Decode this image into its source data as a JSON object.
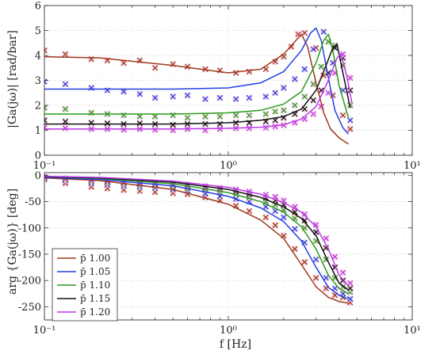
{
  "chart_data": [
    {
      "type": "line",
      "panel": "magnitude",
      "xscale": "log",
      "xlim": [
        0.1,
        10
      ],
      "ylim": [
        0,
        6
      ],
      "yticks": [
        0,
        1,
        2,
        3,
        4,
        5,
        6
      ],
      "xticklabels": [
        "10⁻¹",
        "10⁰",
        "10¹"
      ],
      "xlabel": "",
      "ylabel": "|Ga(jω)| [rad/bar]",
      "grid": true,
      "model": [
        {
          "p": "1.00",
          "x": [
            0.1,
            0.2,
            0.5,
            1.0,
            1.5,
            2.0,
            2.3,
            2.5,
            2.7,
            3.0,
            3.3,
            3.6,
            4.0,
            4.5
          ],
          "y": [
            3.95,
            3.9,
            3.6,
            3.3,
            3.45,
            4.05,
            4.55,
            4.85,
            4.35,
            2.9,
            1.7,
            1.05,
            0.7,
            0.45
          ]
        },
        {
          "p": "1.05",
          "x": [
            0.1,
            0.2,
            0.5,
            1.0,
            1.5,
            2.0,
            2.5,
            2.8,
            3.0,
            3.2,
            3.5,
            3.8,
            4.2,
            4.5
          ],
          "y": [
            2.65,
            2.65,
            2.65,
            2.7,
            2.9,
            3.35,
            4.2,
            4.9,
            5.1,
            4.6,
            3.1,
            1.8,
            1.1,
            0.85
          ]
        },
        {
          "p": "1.10",
          "x": [
            0.1,
            0.2,
            0.5,
            1.0,
            1.5,
            2.0,
            2.5,
            3.0,
            3.3,
            3.5,
            3.7,
            4.0,
            4.5
          ],
          "y": [
            1.65,
            1.65,
            1.65,
            1.7,
            1.8,
            2.05,
            2.55,
            3.7,
            4.6,
            4.85,
            4.2,
            2.8,
            1.5
          ]
        },
        {
          "p": "1.15",
          "x": [
            0.1,
            0.2,
            0.5,
            1.0,
            1.5,
            2.0,
            2.5,
            3.0,
            3.4,
            3.7,
            3.9,
            4.2,
            4.6
          ],
          "y": [
            1.25,
            1.25,
            1.25,
            1.3,
            1.4,
            1.55,
            1.85,
            2.6,
            3.6,
            4.3,
            4.45,
            3.3,
            1.9
          ]
        },
        {
          "p": "1.20",
          "x": [
            0.1,
            0.2,
            0.5,
            1.0,
            1.5,
            2.0,
            2.5,
            3.0,
            3.5,
            3.9,
            4.1,
            4.4,
            4.7
          ],
          "y": [
            1.05,
            1.05,
            1.05,
            1.08,
            1.12,
            1.22,
            1.45,
            1.95,
            3.0,
            3.9,
            4.05,
            3.2,
            2.1
          ]
        }
      ],
      "measured": [
        {
          "p": "1.00",
          "x": [
            0.1,
            0.13,
            0.18,
            0.22,
            0.27,
            0.33,
            0.4,
            0.5,
            0.6,
            0.75,
            0.9,
            1.1,
            1.3,
            1.6,
            1.8,
            2.0,
            2.2,
            2.4,
            2.6,
            3.0,
            3.3,
            3.7,
            4.2,
            4.6
          ],
          "y": [
            4.2,
            4.05,
            3.85,
            3.8,
            3.7,
            3.8,
            3.5,
            3.65,
            3.55,
            3.45,
            3.4,
            3.3,
            3.35,
            3.45,
            3.75,
            3.95,
            4.35,
            4.85,
            4.9,
            4.3,
            3.2,
            2.4,
            1.6,
            1.05
          ]
        },
        {
          "p": "1.05",
          "x": [
            0.1,
            0.13,
            0.18,
            0.22,
            0.27,
            0.33,
            0.4,
            0.5,
            0.6,
            0.75,
            0.9,
            1.1,
            1.3,
            1.6,
            1.8,
            2.0,
            2.3,
            2.6,
            2.9,
            3.3,
            3.7,
            4.2,
            4.6
          ],
          "y": [
            2.95,
            2.85,
            2.7,
            2.6,
            2.55,
            2.45,
            2.3,
            2.35,
            2.4,
            2.25,
            2.3,
            2.25,
            2.3,
            2.35,
            2.5,
            2.7,
            3.05,
            3.45,
            4.25,
            4.95,
            3.7,
            2.6,
            1.4
          ]
        },
        {
          "p": "1.10",
          "x": [
            0.1,
            0.13,
            0.18,
            0.22,
            0.27,
            0.33,
            0.4,
            0.5,
            0.6,
            0.75,
            0.9,
            1.1,
            1.3,
            1.6,
            1.8,
            2.0,
            2.3,
            2.6,
            2.9,
            3.2,
            3.5,
            3.8,
            4.2,
            4.6
          ],
          "y": [
            1.9,
            1.85,
            1.7,
            1.65,
            1.6,
            1.55,
            1.55,
            1.6,
            1.5,
            1.55,
            1.55,
            1.6,
            1.6,
            1.65,
            1.75,
            1.8,
            2.0,
            2.35,
            2.85,
            3.55,
            4.55,
            4.4,
            3.6,
            2.0
          ]
        },
        {
          "p": "1.15",
          "x": [
            0.1,
            0.13,
            0.18,
            0.22,
            0.27,
            0.33,
            0.4,
            0.5,
            0.6,
            0.75,
            0.9,
            1.1,
            1.3,
            1.6,
            1.8,
            2.0,
            2.3,
            2.6,
            2.9,
            3.2,
            3.5,
            3.8,
            4.2,
            4.6
          ],
          "y": [
            1.4,
            1.35,
            1.3,
            1.28,
            1.25,
            1.28,
            1.25,
            1.22,
            1.25,
            1.25,
            1.25,
            1.3,
            1.3,
            1.35,
            1.4,
            1.5,
            1.65,
            1.85,
            2.2,
            2.6,
            3.3,
            4.3,
            3.9,
            2.6
          ]
        },
        {
          "p": "1.20",
          "x": [
            0.1,
            0.13,
            0.18,
            0.22,
            0.27,
            0.33,
            0.4,
            0.5,
            0.6,
            0.75,
            0.9,
            1.1,
            1.3,
            1.6,
            1.8,
            2.0,
            2.3,
            2.6,
            2.9,
            3.2,
            3.5,
            3.8,
            4.2,
            4.6
          ],
          "y": [
            1.1,
            1.08,
            1.05,
            1.05,
            1.02,
            1.05,
            1.02,
            1.0,
            1.05,
            1.0,
            1.05,
            1.08,
            1.08,
            1.1,
            1.15,
            1.2,
            1.3,
            1.45,
            1.65,
            1.95,
            2.5,
            3.3,
            4.05,
            3.1
          ]
        }
      ]
    },
    {
      "type": "line",
      "panel": "phase",
      "xscale": "log",
      "xlim": [
        0.1,
        10
      ],
      "ylim": [
        -275,
        5
      ],
      "yticks": [
        0,
        -50,
        -100,
        -150,
        -200,
        -250
      ],
      "xticklabels": [
        "10⁻¹",
        "10⁰",
        "10¹"
      ],
      "xlabel": "f [Hz]",
      "ylabel": "arg {Ga(jω)} [deg]",
      "grid": true,
      "legend_position": "lower-left",
      "model": [
        {
          "p": "1.00",
          "x": [
            0.1,
            0.2,
            0.5,
            1.0,
            1.5,
            2.0,
            2.5,
            3.0,
            3.5,
            4.0,
            4.5
          ],
          "y": [
            -5,
            -10,
            -27,
            -55,
            -85,
            -120,
            -170,
            -212,
            -232,
            -240,
            -243
          ]
        },
        {
          "p": "1.05",
          "x": [
            0.1,
            0.2,
            0.5,
            1.0,
            1.5,
            2.0,
            2.5,
            3.0,
            3.5,
            4.0,
            4.5
          ],
          "y": [
            -4,
            -8,
            -20,
            -40,
            -62,
            -88,
            -125,
            -175,
            -213,
            -228,
            -235
          ]
        },
        {
          "p": "1.10",
          "x": [
            0.1,
            0.2,
            0.5,
            1.0,
            1.5,
            2.0,
            2.5,
            3.0,
            3.5,
            4.0,
            4.5
          ],
          "y": [
            -3,
            -6,
            -16,
            -33,
            -50,
            -70,
            -98,
            -140,
            -190,
            -215,
            -225
          ]
        },
        {
          "p": "1.15",
          "x": [
            0.1,
            0.2,
            0.5,
            1.0,
            1.5,
            2.0,
            2.5,
            3.0,
            3.5,
            4.0,
            4.5
          ],
          "y": [
            -3,
            -5,
            -13,
            -27,
            -42,
            -60,
            -82,
            -115,
            -165,
            -205,
            -218
          ]
        },
        {
          "p": "1.20",
          "x": [
            0.1,
            0.2,
            0.5,
            1.0,
            1.5,
            2.0,
            2.5,
            3.0,
            3.5,
            4.0,
            4.5
          ],
          "y": [
            -2,
            -4,
            -11,
            -23,
            -36,
            -52,
            -70,
            -98,
            -140,
            -190,
            -210
          ]
        }
      ],
      "measured": [
        {
          "p": "1.00",
          "x": [
            0.1,
            0.13,
            0.18,
            0.22,
            0.27,
            0.33,
            0.4,
            0.5,
            0.6,
            0.75,
            0.9,
            1.1,
            1.3,
            1.6,
            1.8,
            2.0,
            2.3,
            2.6,
            3.0,
            3.4,
            3.8,
            4.2,
            4.6
          ],
          "y": [
            -8,
            -15,
            -22,
            -25,
            -28,
            -30,
            -32,
            -34,
            -36,
            -42,
            -48,
            -58,
            -68,
            -80,
            -95,
            -115,
            -140,
            -165,
            -195,
            -215,
            -228,
            -232,
            -242
          ]
        },
        {
          "p": "1.05",
          "x": [
            0.1,
            0.13,
            0.18,
            0.22,
            0.27,
            0.33,
            0.4,
            0.5,
            0.6,
            0.75,
            0.9,
            1.1,
            1.3,
            1.6,
            1.8,
            2.0,
            2.3,
            2.6,
            3.0,
            3.4,
            3.8,
            4.2,
            4.6
          ],
          "y": [
            -6,
            -10,
            -15,
            -18,
            -20,
            -22,
            -24,
            -27,
            -30,
            -35,
            -40,
            -45,
            -50,
            -60,
            -68,
            -80,
            -102,
            -128,
            -160,
            -195,
            -215,
            -225,
            -235
          ]
        },
        {
          "p": "1.10",
          "x": [
            0.1,
            0.13,
            0.18,
            0.22,
            0.27,
            0.33,
            0.4,
            0.5,
            0.6,
            0.75,
            0.9,
            1.1,
            1.3,
            1.6,
            1.8,
            2.0,
            2.3,
            2.6,
            3.0,
            3.4,
            3.8,
            4.2,
            4.6
          ],
          "y": [
            -5,
            -8,
            -12,
            -14,
            -16,
            -18,
            -20,
            -22,
            -25,
            -28,
            -32,
            -36,
            -42,
            -50,
            -56,
            -66,
            -82,
            -100,
            -125,
            -160,
            -195,
            -212,
            -222
          ]
        },
        {
          "p": "1.15",
          "x": [
            0.1,
            0.13,
            0.18,
            0.22,
            0.27,
            0.33,
            0.4,
            0.5,
            0.6,
            0.75,
            0.9,
            1.1,
            1.3,
            1.6,
            1.8,
            2.0,
            2.3,
            2.6,
            3.0,
            3.4,
            3.8,
            4.2,
            4.6
          ],
          "y": [
            -4,
            -7,
            -10,
            -12,
            -14,
            -16,
            -17,
            -19,
            -21,
            -24,
            -27,
            -31,
            -36,
            -43,
            -48,
            -56,
            -70,
            -86,
            -108,
            -138,
            -175,
            -200,
            -215
          ]
        },
        {
          "p": "1.20",
          "x": [
            0.1,
            0.13,
            0.18,
            0.22,
            0.27,
            0.33,
            0.4,
            0.5,
            0.6,
            0.75,
            0.9,
            1.1,
            1.3,
            1.6,
            1.8,
            2.0,
            2.3,
            2.6,
            3.0,
            3.4,
            3.8,
            4.2,
            4.6
          ],
          "y": [
            -3,
            -6,
            -9,
            -10,
            -12,
            -13,
            -15,
            -17,
            -18,
            -21,
            -24,
            -27,
            -31,
            -37,
            -41,
            -48,
            -60,
            -74,
            -94,
            -120,
            -155,
            -185,
            -205
          ]
        }
      ]
    }
  ],
  "legend": {
    "position": "lower-left",
    "entries": [
      {
        "label": "p̄ 1.00",
        "color": "#a0381d"
      },
      {
        "label": "p̄ 1.05",
        "color": "#2240e6"
      },
      {
        "label": "p̄ 1.10",
        "color": "#2a9a1f"
      },
      {
        "label": "p̄ 1.15",
        "color": "#111111"
      },
      {
        "label": "p̄ 1.20",
        "color": "#bb39e6"
      }
    ]
  },
  "colors": {
    "1.00": "#a0381d",
    "1.05": "#2240e6",
    "1.10": "#2a9a1f",
    "1.15": "#111111",
    "1.20": "#bb39e6",
    "marker_glow": "#f8c3d8"
  }
}
